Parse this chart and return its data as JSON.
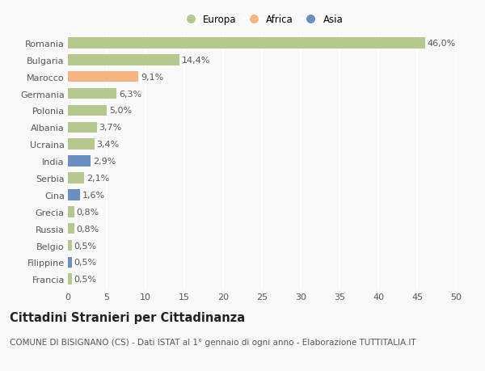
{
  "categories": [
    "Romania",
    "Bulgaria",
    "Marocco",
    "Germania",
    "Polonia",
    "Albania",
    "Ucraina",
    "India",
    "Serbia",
    "Cina",
    "Grecia",
    "Russia",
    "Belgio",
    "Filippine",
    "Francia"
  ],
  "values": [
    46.0,
    14.4,
    9.1,
    6.3,
    5.0,
    3.7,
    3.4,
    2.9,
    2.1,
    1.6,
    0.8,
    0.8,
    0.5,
    0.5,
    0.5
  ],
  "labels": [
    "46,0%",
    "14,4%",
    "9,1%",
    "6,3%",
    "5,0%",
    "3,7%",
    "3,4%",
    "2,9%",
    "2,1%",
    "1,6%",
    "0,8%",
    "0,8%",
    "0,5%",
    "0,5%",
    "0,5%"
  ],
  "continents": [
    "Europa",
    "Europa",
    "Africa",
    "Europa",
    "Europa",
    "Europa",
    "Europa",
    "Asia",
    "Europa",
    "Asia",
    "Europa",
    "Europa",
    "Europa",
    "Asia",
    "Europa"
  ],
  "colors": {
    "Europa": "#b5c98e",
    "Africa": "#f5b480",
    "Asia": "#6b8fc2"
  },
  "xlim": [
    0,
    50
  ],
  "xticks": [
    0,
    5,
    10,
    15,
    20,
    25,
    30,
    35,
    40,
    45,
    50
  ],
  "title": "Cittadini Stranieri per Cittadinanza",
  "subtitle": "COMUNE DI BISIGNANO (CS) - Dati ISTAT al 1° gennaio di ogni anno - Elaborazione TUTTITALIA.IT",
  "background_color": "#f9f9f9",
  "grid_color": "#ffffff",
  "bar_height": 0.65,
  "label_fontsize": 8,
  "tick_fontsize": 8,
  "title_fontsize": 10.5,
  "subtitle_fontsize": 7.5
}
